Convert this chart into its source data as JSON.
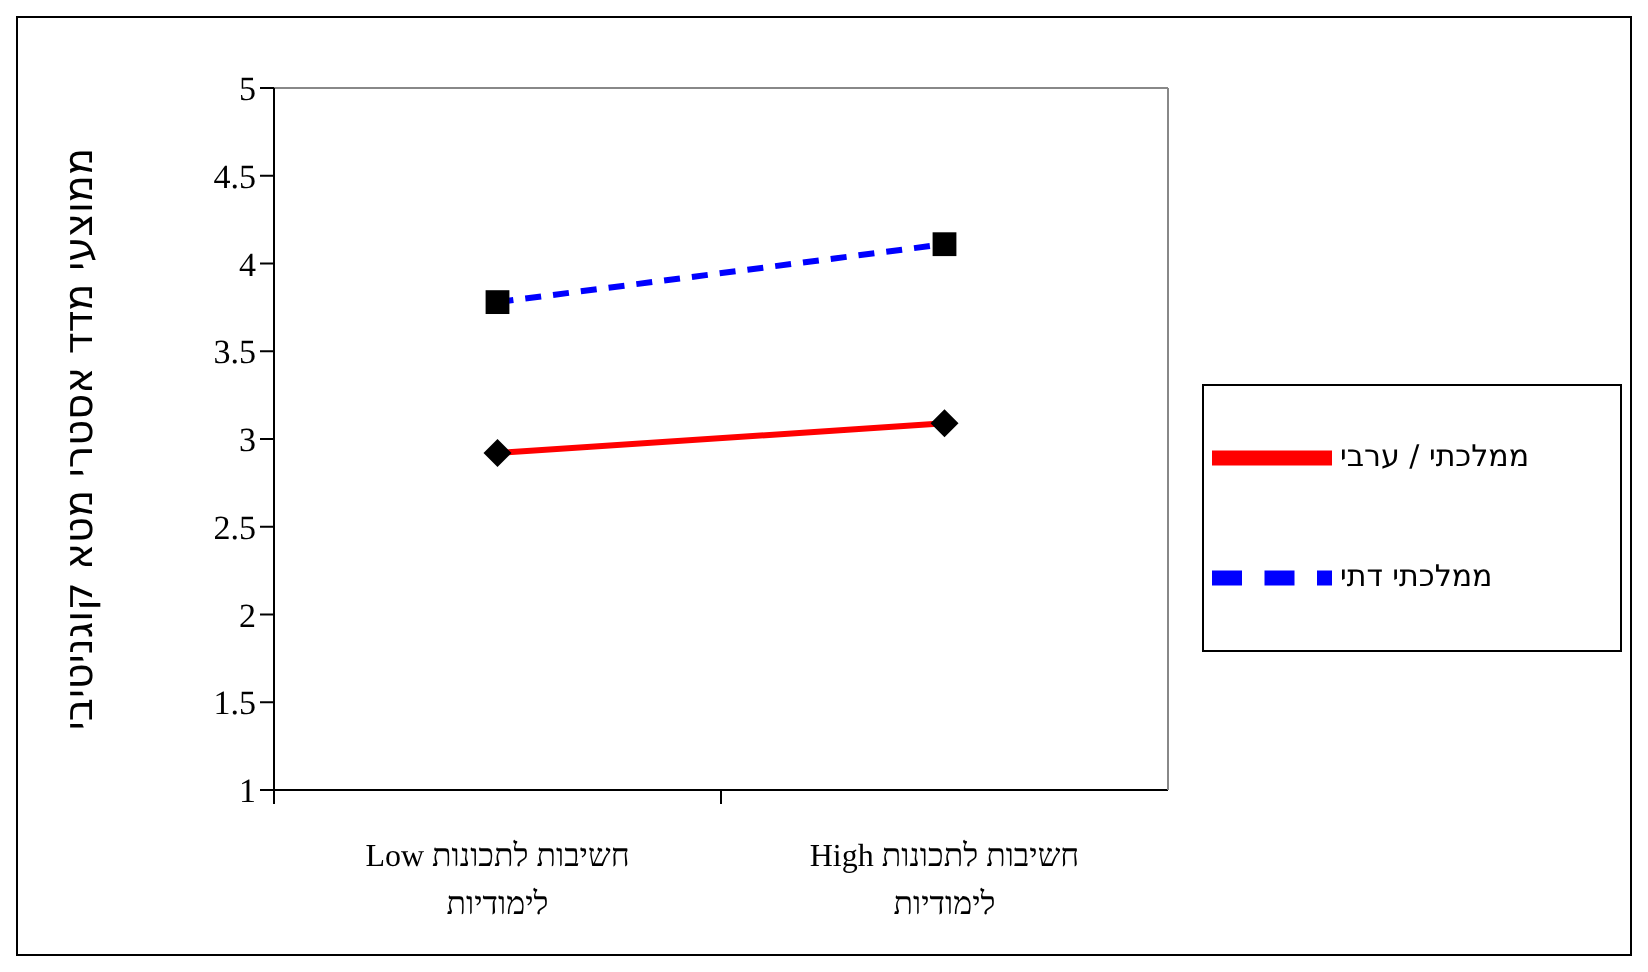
{
  "chart_data": {
    "type": "line",
    "ylabel": "ממוצעי מדד אסטרי מטא קוגניטיבי",
    "categories": [
      "חשיבות לתכונות Low לימודיות",
      "חשיבות לתכונות High לימודיות"
    ],
    "series": [
      {
        "name": "ממלכתי / ערבי",
        "color": "#ff0000",
        "values": [
          2.92,
          3.09
        ],
        "marker": "diamond",
        "line_style": "solid"
      },
      {
        "name": "ממלכתי דתי",
        "color": "#0000ff",
        "values": [
          3.78,
          4.11
        ],
        "marker": "square",
        "line_style": "dashed"
      }
    ],
    "ylim": [
      1,
      5
    ],
    "yticks": [
      1,
      1.5,
      2,
      2.5,
      3,
      3.5,
      4,
      4.5,
      5
    ],
    "grid": false,
    "legend": "right"
  }
}
